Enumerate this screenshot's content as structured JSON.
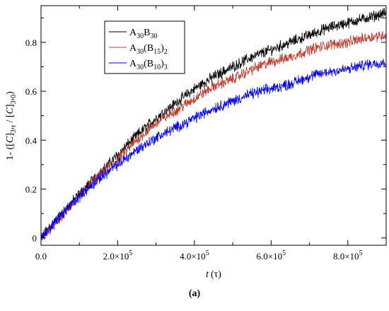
{
  "caption": "(a)",
  "chart_data": {
    "type": "line",
    "title": "",
    "xlabel_italic": "t",
    "xlabel_unit": "(τ)",
    "ylabel": "1- ([C3]t / [C3]0)",
    "xlim": [
      0,
      900000
    ],
    "ylim": [
      -0.03,
      0.95
    ],
    "xticks": [
      0,
      200000,
      400000,
      600000,
      800000
    ],
    "xtick_labels": [
      {
        "mantissa": "0.0",
        "exponent": ""
      },
      {
        "mantissa": "2.0×10",
        "exponent": "5"
      },
      {
        "mantissa": "4.0×10",
        "exponent": "5"
      },
      {
        "mantissa": "6.0×10",
        "exponent": "5"
      },
      {
        "mantissa": "8.0×10",
        "exponent": "5"
      }
    ],
    "yticks": [
      0,
      0.2,
      0.4,
      0.6,
      0.8
    ],
    "ytick_labels": [
      "0",
      "0.2",
      "0.4",
      "0.6",
      "0.8"
    ],
    "grid": false,
    "legend_position": "upper-left",
    "x": [
      0,
      50000,
      100000,
      150000,
      200000,
      250000,
      300000,
      350000,
      400000,
      450000,
      500000,
      550000,
      600000,
      650000,
      700000,
      750000,
      800000,
      850000,
      900000
    ],
    "series": [
      {
        "name": "A30B30",
        "name_parts": [
          [
            "A",
            false
          ],
          [
            "30",
            true
          ],
          [
            "B",
            false
          ],
          [
            "30",
            true
          ]
        ],
        "color": "#000000",
        "values": [
          0.0,
          0.09,
          0.18,
          0.26,
          0.34,
          0.42,
          0.49,
          0.55,
          0.61,
          0.66,
          0.7,
          0.74,
          0.77,
          0.8,
          0.83,
          0.86,
          0.88,
          0.9,
          0.92
        ]
      },
      {
        "name": "A30(B15)2",
        "name_parts": [
          [
            "A",
            false
          ],
          [
            "30",
            true
          ],
          [
            "(B",
            false
          ],
          [
            "15",
            true
          ],
          [
            ")",
            false
          ],
          [
            "2",
            true
          ]
        ],
        "color": "#c0392b",
        "values": [
          0.0,
          0.08,
          0.17,
          0.25,
          0.32,
          0.4,
          0.47,
          0.52,
          0.57,
          0.62,
          0.65,
          0.69,
          0.72,
          0.74,
          0.77,
          0.79,
          0.8,
          0.82,
          0.83
        ]
      },
      {
        "name": "A30(B10)3",
        "name_parts": [
          [
            "A",
            false
          ],
          [
            "30",
            true
          ],
          [
            "(B",
            false
          ],
          [
            "10",
            true
          ],
          [
            ")",
            false
          ],
          [
            "3",
            true
          ]
        ],
        "color": "#0000ff",
        "values": [
          0.0,
          0.09,
          0.17,
          0.24,
          0.3,
          0.36,
          0.41,
          0.45,
          0.49,
          0.53,
          0.56,
          0.59,
          0.61,
          0.63,
          0.66,
          0.68,
          0.69,
          0.71,
          0.72
        ]
      }
    ]
  }
}
